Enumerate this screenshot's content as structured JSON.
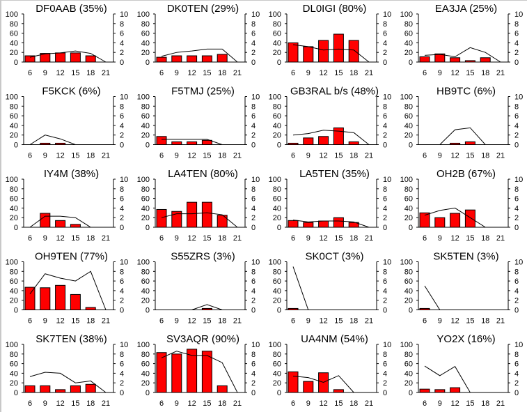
{
  "colors": {
    "bar": "#ff0000",
    "bar_outline": "#000000",
    "line": "#000000",
    "background": "#ffffff"
  },
  "chart_data": [
    {
      "type": "bar+line",
      "title": "DF0AAB (35%)",
      "categories": [
        6,
        9,
        12,
        15,
        18,
        21
      ],
      "bars": [
        13,
        18,
        19,
        19,
        13,
        null
      ],
      "line": [
        1.0,
        1.7,
        1.9,
        2.3,
        1.8,
        0
      ],
      "ylim_left": [
        0,
        100
      ],
      "ylim_right": [
        0,
        10
      ],
      "left_ticks": [
        0,
        20,
        40,
        60,
        80,
        100
      ],
      "right_ticks": [
        0,
        2,
        4,
        6,
        8,
        10
      ]
    },
    {
      "type": "bar+line",
      "title": "DK0TEN (29%)",
      "categories": [
        6,
        9,
        12,
        15,
        18,
        21
      ],
      "bars": [
        10,
        13,
        13,
        13,
        16,
        null
      ],
      "line": [
        1.2,
        2.0,
        2.3,
        2.7,
        2.7,
        0
      ],
      "ylim_left": [
        0,
        100
      ],
      "ylim_right": [
        0,
        10
      ],
      "left_ticks": [
        0,
        20,
        40,
        60,
        80,
        100
      ],
      "right_ticks": [
        0,
        2,
        4,
        6,
        8,
        10
      ]
    },
    {
      "type": "bar+line",
      "title": "DL0IGI (80%)",
      "categories": [
        6,
        9,
        12,
        15,
        18,
        21
      ],
      "bars": [
        40,
        32,
        45,
        58,
        45,
        null
      ],
      "line": [
        3.6,
        3.2,
        2.5,
        2.7,
        2.5,
        0
      ],
      "ylim_left": [
        0,
        100
      ],
      "ylim_right": [
        0,
        10
      ],
      "left_ticks": [
        0,
        20,
        40,
        60,
        80,
        100
      ],
      "right_ticks": [
        0,
        2,
        4,
        6,
        8,
        10
      ]
    },
    {
      "type": "bar+line",
      "title": "EA3JA (25%)",
      "categories": [
        6,
        9,
        12,
        15,
        18,
        21
      ],
      "bars": [
        11,
        17,
        9,
        3,
        9,
        null
      ],
      "line": [
        1.4,
        1.6,
        1.1,
        3.0,
        2.0,
        0
      ],
      "ylim_left": [
        0,
        100
      ],
      "ylim_right": [
        0,
        10
      ],
      "left_ticks": [
        0,
        20,
        40,
        60,
        80,
        100
      ],
      "right_ticks": [
        0,
        2,
        4,
        6,
        8,
        10
      ]
    },
    {
      "type": "bar+line",
      "title": "F5KCK (6%)",
      "categories": [
        6,
        9,
        12,
        15,
        18,
        21
      ],
      "bars": [
        null,
        3,
        3,
        null,
        null,
        null
      ],
      "line": [
        0,
        2.0,
        1.2,
        0,
        null,
        null
      ],
      "ylim_left": [
        0,
        100
      ],
      "ylim_right": [
        0,
        10
      ],
      "left_ticks": [
        0,
        20,
        40,
        60,
        80,
        100
      ],
      "right_ticks": [
        0,
        2,
        4,
        6,
        8,
        10
      ]
    },
    {
      "type": "bar+line",
      "title": "F5TMJ (25%)",
      "categories": [
        6,
        9,
        12,
        15,
        18,
        21
      ],
      "bars": [
        17,
        6,
        6,
        9,
        null,
        null
      ],
      "line": [
        1.1,
        1.1,
        1.1,
        1.1,
        0,
        null
      ],
      "ylim_left": [
        0,
        100
      ],
      "ylim_right": [
        0,
        10
      ],
      "left_ticks": [
        0,
        20,
        40,
        60,
        80,
        100
      ],
      "right_ticks": [
        0,
        2,
        4,
        6,
        8,
        10
      ]
    },
    {
      "type": "bar+line",
      "title": "GB3RAL b/s (48%)",
      "categories": [
        6,
        9,
        12,
        15,
        18,
        21
      ],
      "bars": [
        3,
        14,
        17,
        35,
        6,
        null
      ],
      "line": [
        2.0,
        2.3,
        3.0,
        2.8,
        2.5,
        0
      ],
      "ylim_left": [
        0,
        100
      ],
      "ylim_right": [
        0,
        10
      ],
      "left_ticks": [
        0,
        20,
        40,
        60,
        80,
        100
      ],
      "right_ticks": [
        0,
        2,
        4,
        6,
        8,
        10
      ]
    },
    {
      "type": "bar+line",
      "title": "HB9TC (6%)",
      "categories": [
        6,
        9,
        12,
        15,
        18,
        21
      ],
      "bars": [
        null,
        null,
        3,
        6,
        null,
        null
      ],
      "line": [
        0,
        0,
        3.1,
        3.5,
        0,
        0
      ],
      "ylim_left": [
        0,
        100
      ],
      "ylim_right": [
        0,
        10
      ],
      "left_ticks": [
        0,
        20,
        40,
        60,
        80,
        100
      ],
      "right_ticks": [
        0,
        2,
        4,
        6,
        8,
        10
      ]
    },
    {
      "type": "bar+line",
      "title": "IY4M (38%)",
      "categories": [
        6,
        9,
        12,
        15,
        18,
        21
      ],
      "bars": [
        null,
        29,
        14,
        6,
        null,
        null
      ],
      "line": [
        0,
        2.3,
        2.3,
        2.0,
        0,
        null
      ],
      "ylim_left": [
        0,
        100
      ],
      "ylim_right": [
        0,
        10
      ],
      "left_ticks": [
        0,
        20,
        40,
        60,
        80,
        100
      ],
      "right_ticks": [
        0,
        2,
        4,
        6,
        8,
        10
      ]
    },
    {
      "type": "bar+line",
      "title": "LA4TEN (80%)",
      "categories": [
        6,
        9,
        12,
        15,
        18,
        21
      ],
      "bars": [
        37,
        33,
        52,
        52,
        25,
        null
      ],
      "line": [
        2.0,
        2.8,
        2.8,
        3.0,
        2.6,
        0
      ],
      "ylim_left": [
        0,
        100
      ],
      "ylim_right": [
        0,
        10
      ],
      "left_ticks": [
        0,
        20,
        40,
        60,
        80,
        100
      ],
      "right_ticks": [
        0,
        2,
        4,
        6,
        8,
        10
      ]
    },
    {
      "type": "bar+line",
      "title": "LA5TEN (35%)",
      "categories": [
        6,
        9,
        12,
        15,
        18,
        21
      ],
      "bars": [
        14,
        10,
        13,
        20,
        10,
        null
      ],
      "line": [
        1.5,
        1.1,
        1.3,
        1.3,
        1.1,
        0
      ],
      "ylim_left": [
        0,
        100
      ],
      "ylim_right": [
        0,
        10
      ],
      "left_ticks": [
        0,
        20,
        40,
        60,
        80,
        100
      ],
      "right_ticks": [
        0,
        2,
        4,
        6,
        8,
        10
      ]
    },
    {
      "type": "bar+line",
      "title": "OH2B (67%)",
      "categories": [
        6,
        9,
        12,
        15,
        18,
        21
      ],
      "bars": [
        30,
        20,
        29,
        36,
        null,
        null
      ],
      "line": [
        2.5,
        3.5,
        4.0,
        2.0,
        0,
        0
      ],
      "ylim_left": [
        0,
        100
      ],
      "ylim_right": [
        0,
        10
      ],
      "left_ticks": [
        0,
        20,
        40,
        60,
        80,
        100
      ],
      "right_ticks": [
        0,
        2,
        4,
        6,
        8,
        10
      ]
    },
    {
      "type": "bar+line",
      "title": "OH9TEN (77%)",
      "categories": [
        6,
        9,
        12,
        15,
        18,
        21
      ],
      "bars": [
        47,
        46,
        51,
        32,
        5,
        null
      ],
      "line": [
        3.3,
        7.5,
        6.6,
        6.0,
        8.0,
        0
      ],
      "ylim_left": [
        0,
        100
      ],
      "ylim_right": [
        0,
        10
      ],
      "left_ticks": [
        0,
        20,
        40,
        60,
        80,
        100
      ],
      "right_ticks": [
        0,
        2,
        4,
        6,
        8,
        10
      ]
    },
    {
      "type": "bar+line",
      "title": "S55ZRS (3%)",
      "categories": [
        6,
        9,
        12,
        15,
        18,
        21
      ],
      "bars": [
        null,
        null,
        null,
        3,
        null,
        null
      ],
      "line": [
        0,
        0,
        0,
        1.1,
        0,
        0
      ],
      "ylim_left": [
        0,
        100
      ],
      "ylim_right": [
        0,
        10
      ],
      "left_ticks": [
        0,
        20,
        40,
        60,
        80,
        100
      ],
      "right_ticks": [
        0,
        2,
        4,
        6,
        8,
        10
      ]
    },
    {
      "type": "bar+line",
      "title": "SK0CT (3%)",
      "categories": [
        6,
        9,
        12,
        15,
        18,
        21
      ],
      "bars": [
        3,
        null,
        null,
        null,
        null,
        null
      ],
      "line": [
        9.0,
        0,
        0,
        0,
        0,
        0
      ],
      "ylim_left": [
        0,
        100
      ],
      "ylim_right": [
        0,
        10
      ],
      "left_ticks": [
        0,
        20,
        40,
        60,
        80,
        100
      ],
      "right_ticks": [
        0,
        2,
        4,
        6,
        8,
        10
      ]
    },
    {
      "type": "bar+line",
      "title": "SK5TEN (3%)",
      "categories": [
        6,
        9,
        12,
        15,
        18,
        21
      ],
      "bars": [
        3,
        null,
        null,
        null,
        null,
        null
      ],
      "line": [
        5.0,
        0,
        0,
        0,
        0,
        0
      ],
      "ylim_left": [
        0,
        100
      ],
      "ylim_right": [
        0,
        10
      ],
      "left_ticks": [
        0,
        20,
        40,
        60,
        80,
        100
      ],
      "right_ticks": [
        0,
        2,
        4,
        6,
        8,
        10
      ]
    },
    {
      "type": "bar+line",
      "title": "SK7TEN (38%)",
      "categories": [
        6,
        9,
        12,
        15,
        18,
        21
      ],
      "bars": [
        14,
        14,
        6,
        14,
        17,
        null
      ],
      "line": [
        3.3,
        4.2,
        4.0,
        2.0,
        2.4,
        0
      ],
      "ylim_left": [
        0,
        100
      ],
      "ylim_right": [
        0,
        10
      ],
      "left_ticks": [
        0,
        20,
        40,
        60,
        80,
        100
      ],
      "right_ticks": [
        0,
        2,
        4,
        6,
        8,
        10
      ]
    },
    {
      "type": "bar+line",
      "title": "SV3AQR (90%)",
      "categories": [
        6,
        9,
        12,
        15,
        18,
        21
      ],
      "bars": [
        83,
        80,
        90,
        86,
        14,
        null
      ],
      "line": [
        7.2,
        8.6,
        7.7,
        7.7,
        6.2,
        0
      ],
      "ylim_left": [
        0,
        100
      ],
      "ylim_right": [
        0,
        10
      ],
      "left_ticks": [
        0,
        20,
        40,
        60,
        80,
        100
      ],
      "right_ticks": [
        0,
        2,
        4,
        6,
        8,
        10
      ]
    },
    {
      "type": "bar+line",
      "title": "UA4NM (54%)",
      "categories": [
        6,
        9,
        12,
        15,
        18,
        21
      ],
      "bars": [
        43,
        23,
        41,
        6,
        null,
        null
      ],
      "line": [
        3.4,
        3.1,
        2.1,
        3.5,
        0,
        null
      ],
      "ylim_left": [
        0,
        100
      ],
      "ylim_right": [
        0,
        10
      ],
      "left_ticks": [
        0,
        20,
        40,
        60,
        80,
        100
      ],
      "right_ticks": [
        0,
        2,
        4,
        6,
        8,
        10
      ]
    },
    {
      "type": "bar+line",
      "title": "YO2X (16%)",
      "categories": [
        6,
        9,
        12,
        15,
        18,
        21
      ],
      "bars": [
        7,
        6,
        10,
        null,
        null,
        null
      ],
      "line": [
        5.5,
        3.5,
        5.4,
        0,
        0,
        0
      ],
      "ylim_left": [
        0,
        100
      ],
      "ylim_right": [
        0,
        10
      ],
      "left_ticks": [
        0,
        20,
        40,
        60,
        80,
        100
      ],
      "right_ticks": [
        0,
        2,
        4,
        6,
        8,
        10
      ]
    }
  ]
}
